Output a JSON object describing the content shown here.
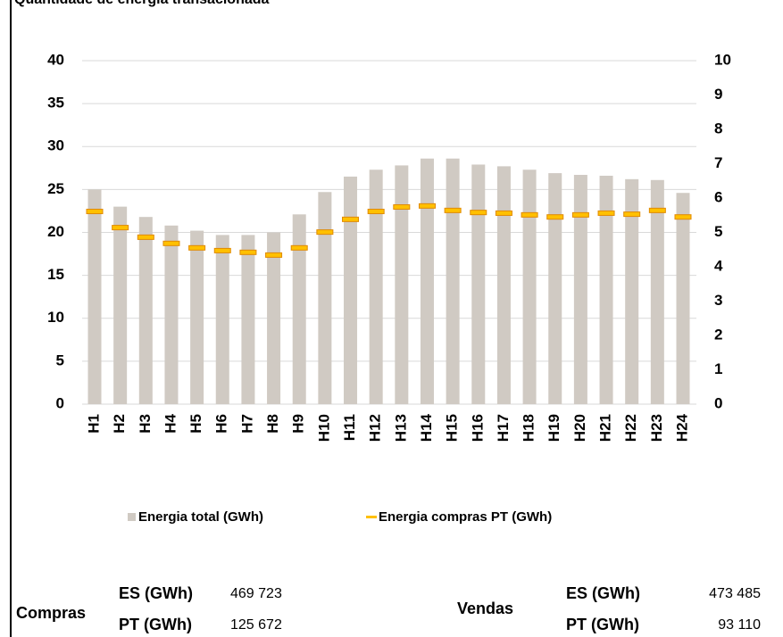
{
  "chart_data": {
    "type": "bar_line",
    "title": "Quantidade de energia transacionada",
    "categories": [
      "H1",
      "H2",
      "H3",
      "H4",
      "H5",
      "H6",
      "H7",
      "H8",
      "H9",
      "H10",
      "H11",
      "H12",
      "H13",
      "H14",
      "H15",
      "H16",
      "H17",
      "H18",
      "H19",
      "H20",
      "H21",
      "H22",
      "H23",
      "H24"
    ],
    "series": [
      {
        "name": "Energia total (GWh)",
        "color": "#d0cac3",
        "mark": "bar",
        "values": [
          25.0,
          23.0,
          21.8,
          20.8,
          20.2,
          19.7,
          19.7,
          20.0,
          22.1,
          24.7,
          26.5,
          27.3,
          27.8,
          28.6,
          28.6,
          27.9,
          27.7,
          27.3,
          26.9,
          26.7,
          26.6,
          26.2,
          26.1,
          24.6
        ]
      },
      {
        "name": "Energia compras PT (GWh)",
        "color": "#ffc000",
        "mark": "dash",
        "axis": "y2",
        "values": [
          5.61,
          5.14,
          4.86,
          4.68,
          4.55,
          4.47,
          4.42,
          4.34,
          4.55,
          5.01,
          5.38,
          5.61,
          5.74,
          5.77,
          5.64,
          5.58,
          5.56,
          5.51,
          5.45,
          5.51,
          5.56,
          5.53,
          5.64,
          5.45
        ]
      }
    ],
    "ylim": [
      0,
      40
    ],
    "yticks": [
      0,
      5,
      10,
      15,
      20,
      25,
      30,
      35,
      40
    ],
    "y2lim": [
      0,
      10
    ],
    "y2ticks": [
      0,
      1,
      2,
      3,
      4,
      5,
      6,
      7,
      8,
      9,
      10
    ],
    "grid": true,
    "legend": "bottom"
  },
  "summary": [
    {
      "label": "Compras",
      "rows": [
        {
          "label": "ES (GWh)",
          "value": "469 723"
        },
        {
          "label": "PT (GWh)",
          "value": "125 672"
        }
      ]
    },
    {
      "label": "Vendas",
      "rows": [
        {
          "label": "ES (GWh)",
          "value": "473 485"
        },
        {
          "label": "PT (GWh)",
          "value": "93 110"
        }
      ]
    }
  ]
}
